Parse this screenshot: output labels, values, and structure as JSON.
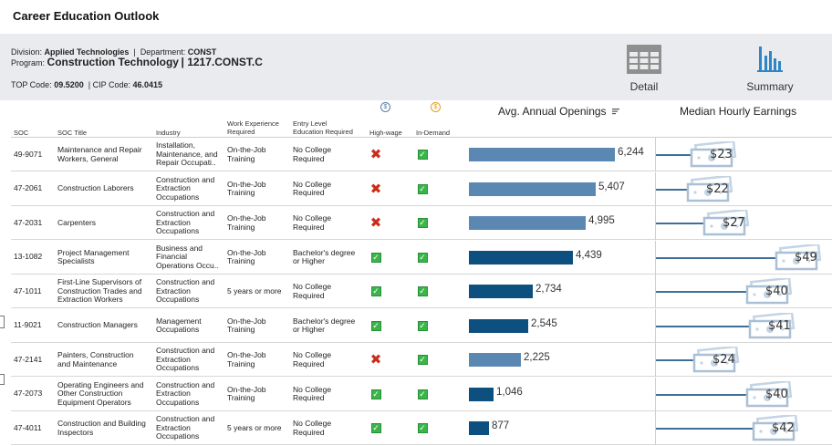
{
  "page_title": "Career Education Outlook",
  "info": {
    "division_label": "Division:",
    "division": "Applied Technologies",
    "department_label": "Department:",
    "department": "CONST",
    "program_label": "Program:",
    "program": "Construction Technology",
    "program_code": "1217.CONST.C",
    "top_code_label": "TOP Code:",
    "top_code": "09.5200",
    "cip_code_label": "CIP Code:",
    "cip_code": "46.0415"
  },
  "views": {
    "detail_label": "Detail",
    "summary_label": "Summary"
  },
  "columns": {
    "soc": "SOC",
    "soc_title": "SOC Title",
    "industry": "Industry",
    "work_exp": [
      "Work Experience",
      "Required"
    ],
    "entry_edu": [
      "Entry Level",
      "Education Required"
    ],
    "high_wage": "High-wage",
    "in_demand": "In-Demand",
    "openings": "Avg. Annual Openings",
    "earnings": "Median Hourly Earnings"
  },
  "colors": {
    "bar_light": "#5b88b3",
    "bar_dark": "#0d4f7f",
    "earn_line": "#3f6f98",
    "check": "#3ab54a",
    "xmark": "#cc2c1a"
  },
  "max_openings": 6244,
  "max_wage": 49,
  "rows": [
    {
      "soc": "49-9071",
      "title": [
        "Maintenance and Repair",
        "Workers, General"
      ],
      "industry": [
        "Installation,",
        "Maintenance, and",
        "Repair Occupati.."
      ],
      "work": [
        "On-the-Job",
        "Training"
      ],
      "edu": [
        "No College",
        "Required"
      ],
      "high_wage": false,
      "in_demand": true,
      "openings": 6244,
      "openings_label": "6,244",
      "wage": 23,
      "wage_label": "$23",
      "dark": false
    },
    {
      "soc": "47-2061",
      "title": [
        "Construction Laborers"
      ],
      "industry": [
        "Construction and",
        "Extraction",
        "Occupations"
      ],
      "work": [
        "On-the-Job",
        "Training"
      ],
      "edu": [
        "No College",
        "Required"
      ],
      "high_wage": false,
      "in_demand": true,
      "openings": 5407,
      "openings_label": "5,407",
      "wage": 22,
      "wage_label": "$22",
      "dark": false
    },
    {
      "soc": "47-2031",
      "title": [
        "Carpenters"
      ],
      "industry": [
        "Construction and",
        "Extraction",
        "Occupations"
      ],
      "work": [
        "On-the-Job",
        "Training"
      ],
      "edu": [
        "No College",
        "Required"
      ],
      "high_wage": false,
      "in_demand": true,
      "openings": 4995,
      "openings_label": "4,995",
      "wage": 27,
      "wage_label": "$27",
      "dark": false
    },
    {
      "soc": "13-1082",
      "title": [
        "Project Management",
        "Specialists"
      ],
      "industry": [
        "Business and",
        "Financial",
        "Operations Occu.."
      ],
      "work": [
        "On-the-Job",
        "Training"
      ],
      "edu": [
        "Bachelor's degree",
        "or Higher"
      ],
      "high_wage": true,
      "in_demand": true,
      "openings": 4439,
      "openings_label": "4,439",
      "wage": 49,
      "wage_label": "$49",
      "dark": true
    },
    {
      "soc": "47-1011",
      "title": [
        "First-Line Supervisors of",
        "Construction Trades and",
        "Extraction Workers"
      ],
      "industry": [
        "Construction and",
        "Extraction",
        "Occupations"
      ],
      "work": [
        "5 years or more"
      ],
      "edu": [
        "No College",
        "Required"
      ],
      "high_wage": true,
      "in_demand": true,
      "openings": 2734,
      "openings_label": "2,734",
      "wage": 40,
      "wage_label": "$40",
      "dark": true
    },
    {
      "soc": "11-9021",
      "title": [
        "Construction Managers"
      ],
      "industry": [
        "Management",
        "Occupations"
      ],
      "work": [
        "On-the-Job",
        "Training"
      ],
      "edu": [
        "Bachelor's degree",
        "or Higher"
      ],
      "high_wage": true,
      "in_demand": true,
      "openings": 2545,
      "openings_label": "2,545",
      "wage": 41,
      "wage_label": "$41",
      "dark": true
    },
    {
      "soc": "47-2141",
      "title": [
        "Painters, Construction",
        "and Maintenance"
      ],
      "industry": [
        "Construction and",
        "Extraction",
        "Occupations"
      ],
      "work": [
        "On-the-Job",
        "Training"
      ],
      "edu": [
        "No College",
        "Required"
      ],
      "high_wage": false,
      "in_demand": true,
      "openings": 2225,
      "openings_label": "2,225",
      "wage": 24,
      "wage_label": "$24",
      "dark": false
    },
    {
      "soc": "47-2073",
      "title": [
        "Operating Engineers and",
        "Other Construction",
        "Equipment Operators"
      ],
      "industry": [
        "Construction and",
        "Extraction",
        "Occupations"
      ],
      "work": [
        "On-the-Job",
        "Training"
      ],
      "edu": [
        "No College",
        "Required"
      ],
      "high_wage": true,
      "in_demand": true,
      "openings": 1046,
      "openings_label": "1,046",
      "wage": 40,
      "wage_label": "$40",
      "dark": true
    },
    {
      "soc": "47-4011",
      "title": [
        "Construction and Building",
        "Inspectors"
      ],
      "industry": [
        "Construction and",
        "Extraction",
        "Occupations"
      ],
      "work": [
        "5 years or more"
      ],
      "edu": [
        "No College",
        "Required"
      ],
      "high_wage": true,
      "in_demand": true,
      "openings": 877,
      "openings_label": "877",
      "wage": 42,
      "wage_label": "$42",
      "dark": true
    }
  ]
}
